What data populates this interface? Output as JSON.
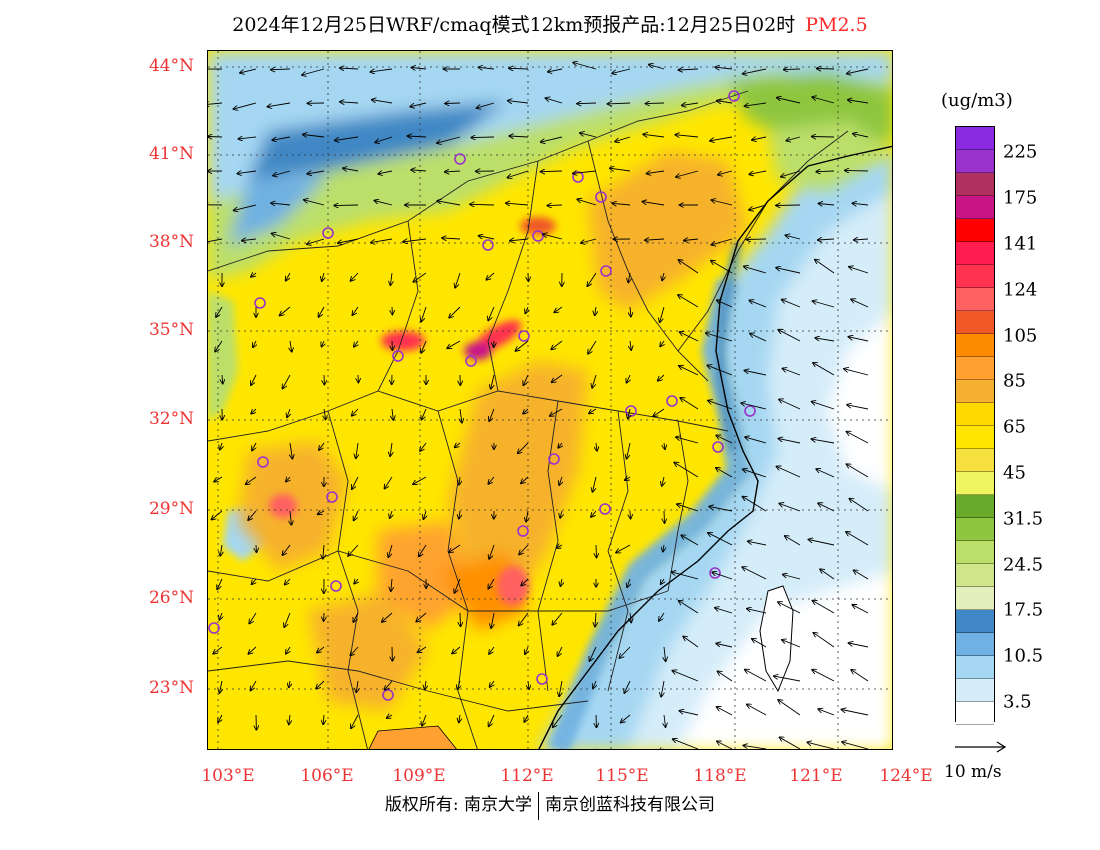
{
  "title": {
    "main": "2024年12月25日WRF/cmaq模式12km预报产品:12月25日02时",
    "pollutant": "PM2.5"
  },
  "axes": {
    "lat_labels": [
      "44°N",
      "41°N",
      "38°N",
      "35°N",
      "32°N",
      "29°N",
      "26°N",
      "23°N"
    ],
    "lon_labels": [
      "103°E",
      "106°E",
      "109°E",
      "112°E",
      "115°E",
      "118°E",
      "121°E",
      "124°E"
    ]
  },
  "legend": {
    "unit": "(ug/m3)",
    "labels": [
      "225",
      "175",
      "141",
      "124",
      "105",
      "85",
      "65",
      "45",
      "31.5",
      "24.5",
      "17.5",
      "10.5",
      "3.5"
    ],
    "colors": [
      "#8a2be2",
      "#9932cc",
      "#b03060",
      "#c71585",
      "#ff0000",
      "#ff1c4f",
      "#ff3250",
      "#ff6060",
      "#f05828",
      "#ff8c00",
      "#ffa030",
      "#f6b02f",
      "#ffd900",
      "#ffe600",
      "#f5e040",
      "#eef560",
      "#6aaa2a",
      "#8ec63f",
      "#bcdf6a",
      "#cfe58a",
      "#e2efbd",
      "#3f88c5",
      "#6fb1e2",
      "#a5d7f2",
      "#d5edf9",
      "#ffffff"
    ]
  },
  "wind_reference": {
    "label": "10 m/s"
  },
  "footer": {
    "copyright_left": "版权所有: 南京大学",
    "copyright_right": "南京创蓝科技有限公司"
  }
}
